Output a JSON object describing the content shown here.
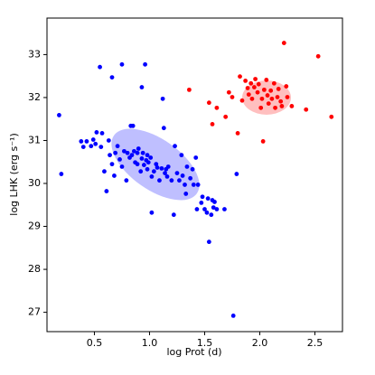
{
  "chart_data": {
    "type": "scatter",
    "xlabel": "log Prot (d)",
    "ylabel": "log LHK (erg s⁻¹)",
    "xlim": [
      0.07,
      2.75
    ],
    "ylim": [
      26.55,
      33.85
    ],
    "xticks": [
      0.5,
      {
        "value": 1,
        "label": "1.0"
      },
      1.5,
      {
        "value": 2,
        "label": "2.0"
      },
      2.5
    ],
    "yticks": [
      27,
      28,
      29,
      30,
      31,
      32,
      33
    ],
    "series": [
      {
        "color": "#0000ff",
        "x": [
          0.18,
          0.2,
          0.38,
          0.4,
          0.43,
          0.47,
          0.49,
          0.51,
          0.52,
          0.55,
          0.56,
          0.57,
          0.59,
          0.61,
          0.63,
          0.64,
          0.66,
          0.66,
          0.68,
          0.69,
          0.71,
          0.73,
          0.75,
          0.75,
          0.77,
          0.79,
          0.8,
          0.82,
          0.83,
          0.84,
          0.85,
          0.86,
          0.87,
          0.89,
          0.89,
          0.9,
          0.92,
          0.93,
          0.93,
          0.94,
          0.95,
          0.96,
          0.97,
          0.98,
          0.98,
          0.99,
          1.01,
          1.02,
          1.02,
          1.04,
          1.06,
          1.07,
          1.09,
          1.11,
          1.12,
          1.13,
          1.14,
          1.15,
          1.16,
          1.17,
          1.2,
          1.22,
          1.23,
          1.25,
          1.27,
          1.29,
          1.3,
          1.32,
          1.33,
          1.34,
          1.37,
          1.39,
          1.4,
          1.42,
          1.43,
          1.44,
          1.47,
          1.48,
          1.5,
          1.52,
          1.53,
          1.54,
          1.56,
          1.57,
          1.58,
          1.59,
          1.61,
          1.68,
          1.76,
          1.79
        ],
        "values": [
          31.59,
          30.22,
          30.98,
          30.85,
          30.98,
          30.87,
          31.02,
          30.92,
          31.19,
          32.71,
          30.85,
          31.17,
          30.28,
          29.82,
          31.0,
          30.66,
          32.47,
          30.45,
          30.18,
          30.71,
          30.87,
          30.56,
          32.77,
          30.39,
          30.75,
          30.07,
          30.71,
          30.6,
          31.34,
          30.66,
          31.34,
          30.75,
          30.49,
          30.71,
          30.45,
          30.81,
          30.28,
          30.58,
          32.24,
          30.71,
          30.43,
          32.77,
          30.54,
          30.66,
          30.33,
          30.49,
          30.6,
          30.16,
          29.32,
          30.28,
          30.45,
          30.37,
          30.07,
          30.35,
          31.97,
          31.29,
          30.24,
          30.33,
          30.16,
          30.39,
          30.07,
          29.27,
          30.87,
          30.24,
          30.07,
          30.66,
          30.18,
          29.97,
          29.76,
          30.39,
          30.12,
          30.33,
          29.97,
          30.6,
          29.4,
          29.97,
          29.55,
          29.69,
          29.4,
          29.32,
          29.65,
          28.64,
          29.27,
          29.61,
          29.44,
          29.57,
          29.4,
          29.4,
          26.92,
          30.22
        ]
      },
      {
        "color": "#ff0000",
        "x": [
          1.36,
          1.54,
          1.57,
          1.61,
          1.69,
          1.72,
          1.75,
          1.8,
          1.82,
          1.84,
          1.87,
          1.89,
          1.9,
          1.92,
          1.93,
          1.95,
          1.96,
          1.98,
          1.99,
          2.01,
          2.02,
          2.03,
          2.04,
          2.06,
          2.07,
          2.08,
          2.1,
          2.11,
          2.13,
          2.14,
          2.16,
          2.17,
          2.19,
          2.2,
          2.22,
          2.24,
          2.25,
          2.29,
          2.42,
          2.53,
          2.65
        ],
        "values": [
          32.18,
          31.88,
          31.38,
          31.76,
          31.55,
          32.12,
          32.01,
          31.17,
          32.49,
          31.93,
          32.39,
          32.22,
          32.07,
          32.33,
          31.97,
          32.24,
          32.43,
          32.12,
          32.31,
          31.76,
          31.97,
          30.98,
          32.18,
          32.41,
          32.05,
          31.86,
          32.16,
          31.97,
          32.33,
          31.76,
          32.01,
          32.2,
          31.91,
          31.8,
          33.27,
          32.26,
          32.01,
          31.8,
          31.72,
          32.96,
          31.55
        ]
      }
    ]
  }
}
